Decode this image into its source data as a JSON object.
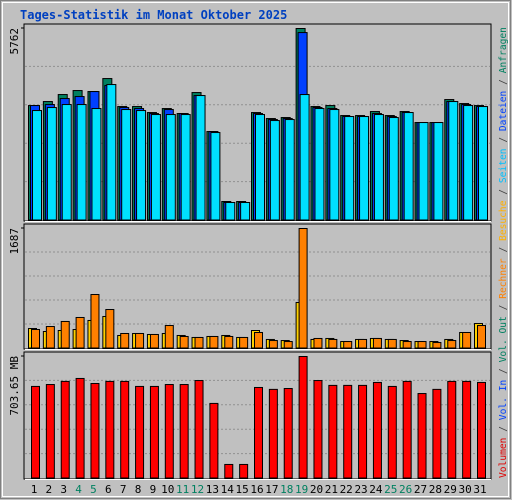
{
  "title": "Tages-Statistik im Monat Oktober 2025",
  "legend_separator": "/",
  "legend": [
    {
      "name": "Volumen",
      "color": "#e00000"
    },
    {
      "name": "Vol. In",
      "color": "#0040ff"
    },
    {
      "name": "Vol. Out",
      "color": "#008060"
    },
    {
      "name": "Rechner",
      "color": "#ff8000"
    },
    {
      "name": "Besuche",
      "color": "#ffb000"
    },
    {
      "name": "Seiten",
      "color": "#00c0ff"
    },
    {
      "name": "Dateien",
      "color": "#0040ff"
    },
    {
      "name": "Anfragen",
      "color": "#008060"
    }
  ],
  "chart_data": [
    {
      "type": "bar",
      "ylim": [
        0,
        5762
      ],
      "yticks": [
        5762
      ],
      "series": [
        {
          "color": "#008060",
          "values": [
            3450,
            3570,
            3780,
            3900,
            3870,
            4260,
            3420,
            3420,
            3240,
            3360,
            3210,
            3840,
            2670,
            570,
            570,
            3240,
            3060,
            3090,
            5762,
            3420,
            3450,
            3150,
            3150,
            3270,
            3150,
            3270,
            2940,
            2940,
            3630,
            3510,
            3450
          ]
        },
        {
          "color": "#0040ff",
          "values": [
            3450,
            3480,
            3660,
            3720,
            3870,
            4050,
            3390,
            3360,
            3210,
            3330,
            3210,
            3750,
            2670,
            540,
            540,
            3210,
            3030,
            3060,
            5640,
            3390,
            3360,
            3120,
            3120,
            3210,
            3120,
            3240,
            2940,
            2940,
            3570,
            3480,
            3420
          ]
        },
        {
          "color": "#00e0ff",
          "values": [
            3300,
            3390,
            3480,
            3480,
            3360,
            4080,
            3330,
            3300,
            3180,
            3180,
            3180,
            3750,
            2640,
            540,
            540,
            3180,
            3000,
            3030,
            3780,
            3360,
            3330,
            3120,
            3120,
            3180,
            3090,
            3240,
            2940,
            2940,
            3570,
            3450,
            3420
          ]
        }
      ]
    },
    {
      "type": "bar",
      "ylim": [
        0,
        1687
      ],
      "yticks": [
        1687
      ],
      "series": [
        {
          "color": "#ffd000",
          "values": [
            281,
            239,
            253,
            267,
            394,
            450,
            183,
            211,
            197,
            211,
            183,
            155,
            169,
            183,
            155,
            253,
            127,
            112,
            647,
            127,
            141,
            98,
            127,
            141,
            127,
            112,
            98,
            98,
            127,
            225,
            351
          ]
        },
        {
          "color": "#ff8000",
          "values": [
            267,
            309,
            380,
            436,
            759,
            548,
            211,
            211,
            197,
            323,
            169,
            155,
            169,
            169,
            155,
            225,
            112,
            98,
            1687,
            141,
            127,
            98,
            127,
            141,
            127,
            98,
            98,
            84,
            112,
            225,
            323
          ]
        }
      ]
    },
    {
      "type": "bar",
      "ylim": [
        0,
        703.65
      ],
      "yticks": [
        {
          "value": 703.65,
          "label": "703.65 MB"
        }
      ],
      "categories": [
        "1",
        "2",
        "3",
        "4",
        "5",
        "6",
        "7",
        "8",
        "9",
        "10",
        "11",
        "12",
        "13",
        "14",
        "15",
        "16",
        "17",
        "18",
        "19",
        "20",
        "21",
        "22",
        "23",
        "24",
        "25",
        "26",
        "27",
        "28",
        "29",
        "30",
        "31"
      ],
      "category_colors": [
        "#000000",
        "#000000",
        "#000000",
        "#008060",
        "#008060",
        "#000000",
        "#000000",
        "#000000",
        "#000000",
        "#000000",
        "#008060",
        "#008060",
        "#000000",
        "#000000",
        "#000000",
        "#000000",
        "#000000",
        "#008060",
        "#008060",
        "#000000",
        "#000000",
        "#000000",
        "#000000",
        "#000000",
        "#008060",
        "#008060",
        "#000000",
        "#000000",
        "#000000",
        "#000000",
        "#000000"
      ],
      "series": [
        {
          "color": "#ff0000",
          "values": [
            531,
            542,
            560,
            577,
            548,
            560,
            560,
            531,
            531,
            542,
            542,
            565,
            433,
            81,
            81,
            525,
            514,
            519,
            703.65,
            565,
            537,
            537,
            537,
            554,
            531,
            560,
            490,
            514,
            560,
            560,
            554
          ]
        }
      ]
    }
  ]
}
